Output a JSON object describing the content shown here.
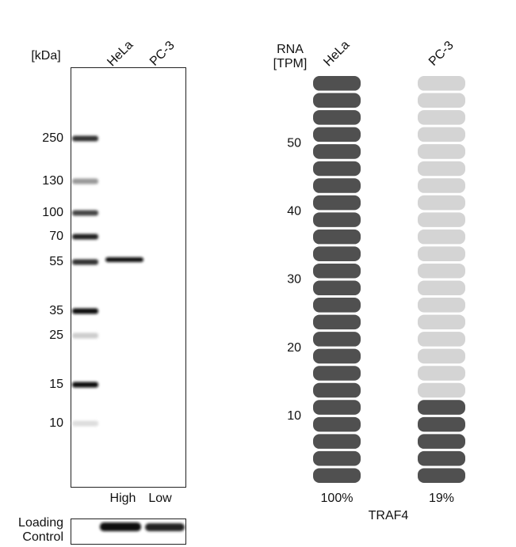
{
  "western_blot": {
    "unit_label": "[kDa]",
    "lanes": [
      "HeLa",
      "PC-3"
    ],
    "markers": [
      250,
      130,
      100,
      70,
      55,
      35,
      25,
      15,
      10
    ],
    "expression_levels": [
      "High",
      "Low"
    ],
    "loading_control_label": [
      "Loading",
      "Control"
    ]
  },
  "chart_data": {
    "type": "bar",
    "axis_label": [
      "RNA",
      "[TPM]"
    ],
    "categories": [
      "HeLa",
      "PC-3"
    ],
    "values": [
      100,
      19
    ],
    "value_labels": [
      "100%",
      "19%"
    ],
    "ylim": [
      0,
      60
    ],
    "yticks": [
      10,
      20,
      30,
      40,
      50
    ],
    "xlabel": "TRAF4",
    "color": "#505050",
    "empty_color": "#d4d4d4"
  }
}
